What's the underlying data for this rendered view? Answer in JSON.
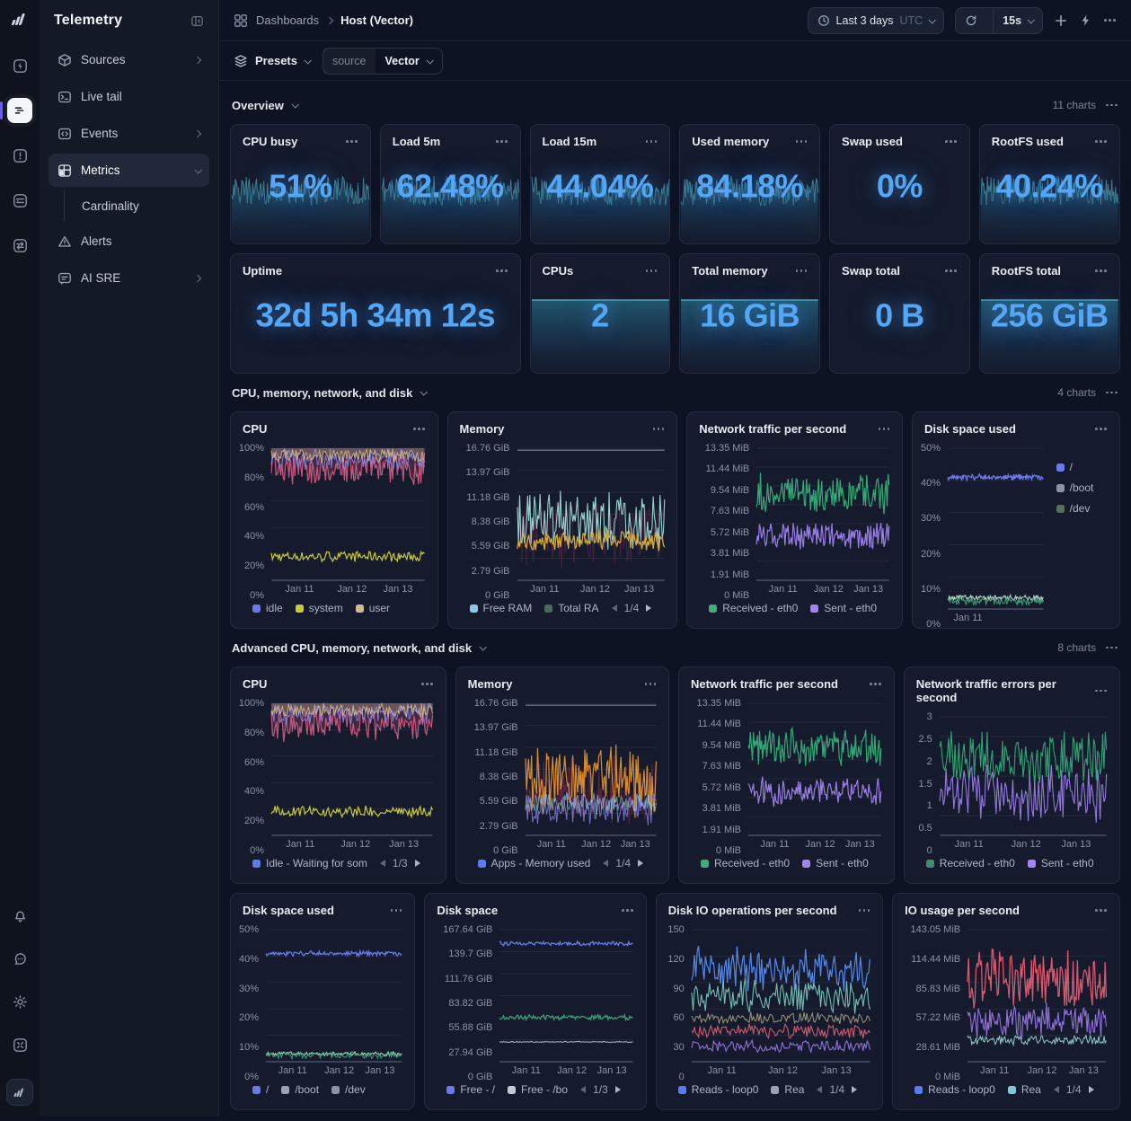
{
  "app": {
    "title": "Telemetry"
  },
  "header": {
    "breadcrumb_root": "Dashboards",
    "breadcrumb_current": "Host (Vector)",
    "time_range": "Last 3 days",
    "timezone": "UTC",
    "refresh_interval": "15s"
  },
  "filters": {
    "presets_label": "Presets",
    "source_key": "source",
    "source_value": "Vector"
  },
  "sidebar": {
    "items": [
      {
        "label": "Sources"
      },
      {
        "label": "Live tail"
      },
      {
        "label": "Events"
      },
      {
        "label": "Metrics"
      },
      {
        "label": "Cardinality"
      },
      {
        "label": "Alerts"
      },
      {
        "label": "AI SRE"
      }
    ]
  },
  "sections": [
    {
      "title": "Overview",
      "count_label": "11 charts"
    },
    {
      "title": "CPU, memory, network, and disk",
      "count_label": "4 charts"
    },
    {
      "title": "Advanced CPU, memory, network, and disk",
      "count_label": "8 charts"
    }
  ],
  "stats": [
    {
      "title": "CPU busy",
      "value": "51%"
    },
    {
      "title": "Load 5m",
      "value": "62.48%"
    },
    {
      "title": "Load 15m",
      "value": "44.04%"
    },
    {
      "title": "Used memory",
      "value": "84.18%"
    },
    {
      "title": "Swap used",
      "value": "0%"
    },
    {
      "title": "RootFS used",
      "value": "40.24%"
    },
    {
      "title": "Uptime",
      "value": "32d 5h 34m 12s"
    },
    {
      "title": "CPUs",
      "value": "2"
    },
    {
      "title": "Total memory",
      "value": "16 GiB"
    },
    {
      "title": "Swap total",
      "value": "0 B"
    },
    {
      "title": "RootFS total",
      "value": "256 GiB"
    }
  ],
  "chart_data": {
    "cpu1": {
      "type": "line",
      "title": "CPU",
      "y_ticks": [
        "100%",
        "80%",
        "60%",
        "40%",
        "20%",
        "0%"
      ],
      "x_ticks": [
        "Jan 11",
        "Jan 12",
        "Jan 13"
      ],
      "legend": [
        {
          "label": "idle",
          "color": "#6b79ea"
        },
        {
          "label": "system",
          "color": "#c9c93c"
        },
        {
          "label": "user",
          "color": "#cdbb95"
        }
      ],
      "series": [
        {
          "color": "#e0608a",
          "center": 0.84,
          "amp": 0.14,
          "width": 1.2,
          "opacity": 0.85,
          "fill": "up",
          "fill_opacity": 0.22,
          "seed": 41
        },
        {
          "color": "#8b87f0",
          "center": 0.92,
          "amp": 0.09,
          "width": 1,
          "opacity": 0.9,
          "seed": 17
        },
        {
          "color": "#cdbb95",
          "center": 0.945,
          "amp": 0.06,
          "width": 1,
          "opacity": 0.9,
          "fill": "up",
          "fill_opacity": 0.3,
          "seed": 29
        },
        {
          "color": "#c9c93c",
          "center": 0.18,
          "amp": 0.045,
          "width": 1.2,
          "opacity": 1,
          "seed": 7
        }
      ]
    },
    "mem1": {
      "type": "line",
      "title": "Memory",
      "y_ticks": [
        "16.76 GiB",
        "13.97 GiB",
        "11.18 GiB",
        "8.38 GiB",
        "5.59 GiB",
        "2.79 GiB",
        "0 GiB"
      ],
      "x_ticks": [
        "Jan 11",
        "Jan 12",
        "Jan 13"
      ],
      "legend": [
        {
          "label": "Free RAM",
          "color": "#8fc7e8"
        },
        {
          "label": "Total RA",
          "color": "#49695a"
        }
      ],
      "page": "1/4",
      "series": [
        {
          "color": "#70809c",
          "center": 0.985,
          "amp": 0,
          "flat": true,
          "width": 1.4,
          "opacity": 0.9
        },
        {
          "color": "#7a2850",
          "center": 0.35,
          "amp": 0.3,
          "width": 1,
          "opacity": 0.5,
          "seed": 13
        },
        {
          "color": "#9fdcd8",
          "center": 0.44,
          "amp": 0.27,
          "width": 1.1,
          "opacity": 0.95,
          "seed": 59
        },
        {
          "color": "#d2a83a",
          "center": 0.3,
          "amp": 0.09,
          "width": 1.3,
          "opacity": 1,
          "seed": 23
        }
      ]
    },
    "net1": {
      "type": "line",
      "title": "Network traffic per second",
      "y_ticks": [
        "13.35 MiB",
        "11.44 MiB",
        "9.54 MiB",
        "7.63 MiB",
        "5.72 MiB",
        "3.81 MiB",
        "1.91 MiB",
        "0 MiB"
      ],
      "x_ticks": [
        "Jan 11",
        "Jan 12",
        "Jan 13"
      ],
      "legend": [
        {
          "label": "Received - eth0",
          "color": "#3fae7a"
        },
        {
          "label": "Sent - eth0",
          "color": "#a184ef"
        }
      ],
      "series": [
        {
          "color": "#34b27c",
          "center": 0.66,
          "amp": 0.17,
          "width": 1.2,
          "opacity": 0.95,
          "seed": 31
        },
        {
          "color": "#a184ef",
          "center": 0.33,
          "amp": 0.12,
          "width": 1.2,
          "opacity": 0.95,
          "seed": 47
        }
      ]
    },
    "disk_used_small": {
      "type": "line",
      "title": "Disk space used",
      "y_ticks": [
        "50%",
        "40%",
        "30%",
        "20%",
        "10%",
        "0%"
      ],
      "x_ticks": [
        "Jan 11"
      ],
      "legend_right": true,
      "legend": [
        {
          "label": "/",
          "color": "#6b79ea"
        },
        {
          "label": "/boot",
          "color": "#8a93a8"
        },
        {
          "label": "/dev",
          "color": "#56705f"
        }
      ],
      "series": [
        {
          "color": "#6b79ea",
          "center": 0.82,
          "amp": 0.02,
          "width": 1.3,
          "opacity": 1,
          "seed": 11
        },
        {
          "color": "#cfeede",
          "center": 0.07,
          "amp": 0.02,
          "width": 1,
          "opacity": 0.9,
          "seed": 9
        },
        {
          "color": "#3fae7a",
          "center": 0.05,
          "amp": 0.028,
          "width": 1,
          "opacity": 0.9,
          "seed": 21
        }
      ]
    },
    "cpu2": {
      "type": "line",
      "title": "CPU",
      "y_ticks": [
        "100%",
        "80%",
        "60%",
        "40%",
        "20%",
        "0%"
      ],
      "x_ticks": [
        "Jan 11",
        "Jan 12",
        "Jan 13"
      ],
      "legend": [
        {
          "label": "Idle - Waiting for som",
          "color": "#5b7bf0"
        }
      ],
      "page": "1/3",
      "series": [
        {
          "color": "#e0608a",
          "center": 0.84,
          "amp": 0.14,
          "width": 1.2,
          "opacity": 0.85,
          "fill": "up",
          "fill_opacity": 0.22,
          "seed": 83
        },
        {
          "color": "#8b87f0",
          "center": 0.92,
          "amp": 0.09,
          "width": 1,
          "opacity": 0.9,
          "seed": 19
        },
        {
          "color": "#cdbb95",
          "center": 0.945,
          "amp": 0.06,
          "width": 1,
          "opacity": 0.9,
          "fill": "up",
          "fill_opacity": 0.3,
          "seed": 57
        },
        {
          "color": "#c9c93c",
          "center": 0.18,
          "amp": 0.045,
          "width": 1.2,
          "opacity": 1,
          "seed": 25
        }
      ]
    },
    "mem2": {
      "type": "line",
      "title": "Memory",
      "y_ticks": [
        "16.76 GiB",
        "13.97 GiB",
        "11.18 GiB",
        "8.38 GiB",
        "5.59 GiB",
        "2.79 GiB",
        "0 GiB"
      ],
      "x_ticks": [
        "Jan 11",
        "Jan 12",
        "Jan 13"
      ],
      "legend": [
        {
          "label": "Apps - Memory used",
          "color": "#5b7bf0"
        }
      ],
      "page": "1/4",
      "series": [
        {
          "color": "#70809c",
          "center": 0.985,
          "amp": 0,
          "flat": true,
          "width": 1.4,
          "opacity": 0.9
        },
        {
          "color": "#8a2f55",
          "center": 0.33,
          "amp": 0.28,
          "width": 1,
          "opacity": 0.6,
          "seed": 37
        },
        {
          "color": "#e2932e",
          "center": 0.42,
          "amp": 0.3,
          "width": 1.2,
          "opacity": 0.95,
          "seed": 53
        },
        {
          "color": "#8b87f0",
          "center": 0.2,
          "amp": 0.13,
          "width": 1,
          "opacity": 0.8,
          "seed": 19
        },
        {
          "color": "#9fdcd8",
          "center": 0.24,
          "amp": 0.09,
          "width": 1,
          "opacity": 0.6,
          "seed": 61
        }
      ]
    },
    "net2": {
      "type": "line",
      "title": "Network traffic per second",
      "y_ticks": [
        "13.35 MiB",
        "11.44 MiB",
        "9.54 MiB",
        "7.63 MiB",
        "5.72 MiB",
        "3.81 MiB",
        "1.91 MiB",
        "0 MiB"
      ],
      "x_ticks": [
        "Jan 11",
        "Jan 12",
        "Jan 13"
      ],
      "legend": [
        {
          "label": "Received - eth0",
          "color": "#3fae7a"
        },
        {
          "label": "Sent - eth0",
          "color": "#a184ef"
        }
      ],
      "series": [
        {
          "color": "#34b27c",
          "center": 0.66,
          "amp": 0.17,
          "width": 1.2,
          "opacity": 0.95,
          "seed": 73
        },
        {
          "color": "#a184ef",
          "center": 0.33,
          "amp": 0.12,
          "width": 1.2,
          "opacity": 0.95,
          "seed": 67
        }
      ]
    },
    "net_err": {
      "type": "line",
      "title": "Network traffic errors per second",
      "y_ticks": [
        "3",
        "2.5",
        "2",
        "1.5",
        "1",
        "0.5",
        "0"
      ],
      "x_ticks": [
        "Jan 11",
        "Jan 12",
        "Jan 13"
      ],
      "legend": [
        {
          "label": "Received - eth0",
          "color": "#3f8f6f"
        },
        {
          "label": "Sent - eth0",
          "color": "#a184ef"
        }
      ],
      "series": [
        {
          "color": "#34b27c",
          "center": 0.68,
          "amp": 0.27,
          "width": 1.1,
          "opacity": 0.9,
          "seed": 43
        },
        {
          "color": "#a184ef",
          "center": 0.36,
          "amp": 0.27,
          "width": 1.1,
          "opacity": 0.9,
          "seed": 71
        }
      ]
    },
    "disk_used2": {
      "type": "line",
      "title": "Disk space used",
      "y_ticks": [
        "50%",
        "40%",
        "30%",
        "20%",
        "10%",
        "0%"
      ],
      "x_ticks": [
        "Jan 11",
        "Jan 12",
        "Jan 13"
      ],
      "legend": [
        {
          "label": "/",
          "color": "#6b79ea"
        },
        {
          "label": "/boot",
          "color": "#9aa3b5"
        },
        {
          "label": "/dev",
          "color": "#8a93a8"
        }
      ],
      "series": [
        {
          "color": "#6b79ea",
          "center": 0.82,
          "amp": 0.02,
          "width": 1.3,
          "opacity": 1,
          "seed": 11
        },
        {
          "color": "#cfeede",
          "center": 0.06,
          "amp": 0.018,
          "width": 1,
          "opacity": 0.9,
          "seed": 9
        },
        {
          "color": "#3fae7a",
          "center": 0.05,
          "amp": 0.028,
          "width": 1,
          "opacity": 0.9,
          "seed": 21
        }
      ]
    },
    "disk_space": {
      "type": "line",
      "title": "Disk space",
      "y_ticks": [
        "167.64 GiB",
        "139.7 GiB",
        "111.76 GiB",
        "83.82 GiB",
        "55.88 GiB",
        "27.94 GiB",
        "0 GiB"
      ],
      "x_ticks": [
        "Jan 11",
        "Jan 12",
        "Jan 13"
      ],
      "legend": [
        {
          "label": "Free - /",
          "color": "#6b79ea"
        },
        {
          "label": "Free - /bo",
          "color": "#c2cad6"
        }
      ],
      "page": "1/3",
      "series": [
        {
          "color": "#6b79ea",
          "center": 0.895,
          "amp": 0.018,
          "width": 1.3,
          "opacity": 1,
          "seed": 15
        },
        {
          "color": "#3fae7a",
          "center": 0.335,
          "amp": 0.022,
          "width": 1.2,
          "opacity": 0.95,
          "seed": 33
        },
        {
          "color": "#c8d0dc",
          "center": 0.15,
          "amp": 0.005,
          "width": 1,
          "opacity": 0.85,
          "seed": 3
        }
      ]
    },
    "disk_io": {
      "type": "line",
      "title": "Disk IO operations per second",
      "y_ticks": [
        "150",
        "120",
        "90",
        "60",
        "30",
        "0"
      ],
      "x_ticks": [
        "Jan 11",
        "Jan 12",
        "Jan 13"
      ],
      "legend": [
        {
          "label": "Reads - loop0",
          "color": "#5b7bf0"
        },
        {
          "label": "Rea",
          "color": "#9aa3b5"
        }
      ],
      "page": "1/4",
      "series": [
        {
          "color": "#5b8df0",
          "center": 0.7,
          "amp": 0.18,
          "width": 1.2,
          "opacity": 0.95,
          "seed": 77
        },
        {
          "color": "#7ecfc4",
          "center": 0.5,
          "amp": 0.15,
          "width": 1.1,
          "opacity": 0.9,
          "seed": 35
        },
        {
          "color": "#b5ab8e",
          "center": 0.33,
          "amp": 0.05,
          "width": 1,
          "opacity": 0.85,
          "seed": 51
        },
        {
          "color": "#e0607a",
          "center": 0.23,
          "amp": 0.06,
          "width": 1.1,
          "opacity": 0.9,
          "seed": 27
        },
        {
          "color": "#9d7bea",
          "center": 0.12,
          "amp": 0.05,
          "width": 1.1,
          "opacity": 0.9,
          "seed": 63
        }
      ]
    },
    "io_usage": {
      "type": "line",
      "title": "IO usage per second",
      "y_ticks": [
        "143.05 MiB",
        "114.44 MiB",
        "85.83 MiB",
        "57.22 MiB",
        "28.61 MiB",
        "0 MiB"
      ],
      "x_ticks": [
        "Jan 11",
        "Jan 12",
        "Jan 13"
      ],
      "legend": [
        {
          "label": "Reads - loop0",
          "color": "#5b7bf0"
        },
        {
          "label": "Rea",
          "color": "#7ec8d8"
        }
      ],
      "page": "1/4",
      "series": [
        {
          "color": "#e05c72",
          "center": 0.63,
          "amp": 0.27,
          "width": 1.3,
          "opacity": 0.95,
          "seed": 87
        },
        {
          "color": "#9d7bea",
          "center": 0.31,
          "amp": 0.15,
          "width": 1.1,
          "opacity": 0.9,
          "seed": 45
        },
        {
          "color": "#9fdcd8",
          "center": 0.165,
          "amp": 0.04,
          "width": 1,
          "opacity": 0.9,
          "seed": 91
        }
      ]
    }
  }
}
